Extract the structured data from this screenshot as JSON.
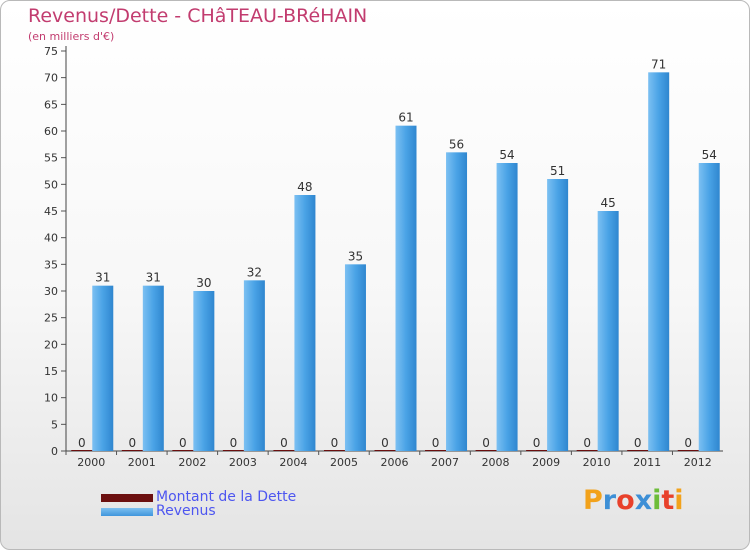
{
  "title": "Revenus/Dette - CHâTEAU-BRéHAIN",
  "subtitle": "(en milliers d'€)",
  "chart_data": {
    "type": "bar",
    "title": "Revenus/Dette - CHâTEAU-BRéHAIN",
    "subtitle": "(en milliers d'€)",
    "xlabel": "",
    "ylabel": "(en milliers d'€)",
    "ylim": [
      0,
      75
    ],
    "yticks": [
      0,
      5,
      10,
      15,
      20,
      25,
      30,
      35,
      40,
      45,
      50,
      55,
      60,
      65,
      70,
      75
    ],
    "grid": false,
    "legend_position": "bottom-left",
    "categories": [
      "2000",
      "2001",
      "2002",
      "2003",
      "2004",
      "2005",
      "2006",
      "2007",
      "2008",
      "2009",
      "2010",
      "2011",
      "2012"
    ],
    "series": [
      {
        "name": "Montant de la Dette",
        "color": "#6b0f0f",
        "values": [
          0,
          0,
          0,
          0,
          0,
          0,
          0,
          0,
          0,
          0,
          0,
          0,
          0
        ],
        "labels": [
          "0",
          "0",
          "0",
          "0",
          "0",
          "0",
          "0",
          "0",
          "0",
          "0",
          "0",
          "0",
          "0"
        ]
      },
      {
        "name": "Revenus",
        "color": "#4aa3e6",
        "values": [
          31,
          31,
          30,
          32,
          48,
          35,
          61,
          56,
          54,
          51,
          45,
          71,
          54
        ],
        "labels": [
          "31",
          "31",
          "30",
          "32",
          "48",
          "35",
          "61",
          "56",
          "54",
          "51",
          "45",
          "71",
          "54"
        ]
      }
    ]
  },
  "legend": [
    {
      "label": "Montant de la Dette",
      "color": "#6b0f0f"
    },
    {
      "label": "Revenus",
      "color": "#4aa3e6"
    }
  ],
  "logo": {
    "letters": [
      "P",
      "r",
      "o",
      "x",
      "i",
      "t",
      "i"
    ],
    "colors": [
      "#f2a21b",
      "#3d8fd6",
      "#e8412b",
      "#3d8fd6",
      "#6dbd3a",
      "#e8412b",
      "#f2a21b"
    ]
  }
}
